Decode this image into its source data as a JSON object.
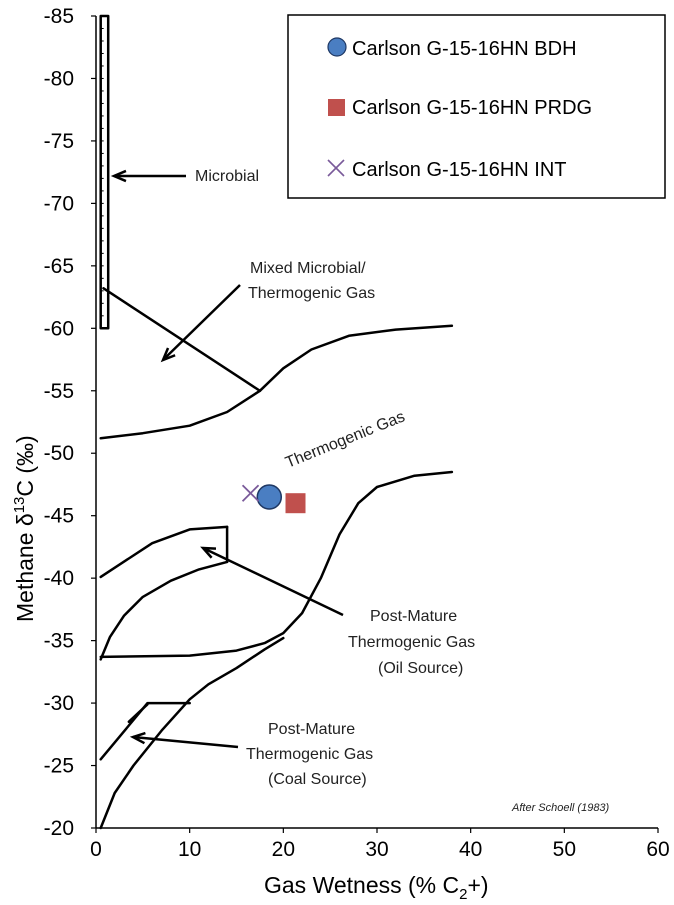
{
  "chart_data": {
    "type": "scatter",
    "xlabel": "Gas Wetness (% C",
    "xlabel_sub": "2",
    "xlabel_end": "+)",
    "ylabel": "Methane  δ",
    "ylabel_sup": "13",
    "ylabel_end": "C (‰)",
    "xlim": [
      0,
      60
    ],
    "ylim": [
      -20,
      -85
    ],
    "x_ticks": [
      0,
      10,
      20,
      30,
      40,
      50,
      60
    ],
    "y_ticks": [
      -20,
      -25,
      -30,
      -35,
      -40,
      -45,
      -50,
      -55,
      -60,
      -65,
      -70,
      -75,
      -80,
      -85
    ],
    "grid": false,
    "legend_position": "top-right",
    "series": [
      {
        "name": "Carlson G-15-16HN BDH",
        "marker": "circle",
        "color": "#4a7ec2",
        "x": [
          18.5
        ],
        "y": [
          -46.5
        ]
      },
      {
        "name": "Carlson G-15-16HN PRDG",
        "marker": "square",
        "color": "#c0504d",
        "x": [
          21.3
        ],
        "y": [
          -46.0
        ]
      },
      {
        "name": "Carlson G-15-16HN INT",
        "marker": "x",
        "color": "#7a5a9a",
        "x": [
          16.5
        ],
        "y": [
          -46.8
        ]
      }
    ],
    "annotations": [
      {
        "text": "Microbial"
      },
      {
        "text": "Mixed Microbial/"
      },
      {
        "text": "Thermogenic Gas"
      },
      {
        "text": "Thermogenic Gas"
      },
      {
        "text": "Post-Mature"
      },
      {
        "text": "Thermogenic Gas"
      },
      {
        "text": "(Oil Source)"
      },
      {
        "text": "Post-Mature"
      },
      {
        "text": "Thermogenic Gas"
      },
      {
        "text": "(Coal Source)"
      }
    ],
    "citation": "After Schoell (1983)",
    "field_boundaries": [
      {
        "region": "microbial",
        "points": [
          [
            0.5,
            -85
          ],
          [
            1.3,
            -85
          ],
          [
            1.3,
            -60
          ],
          [
            0.5,
            -60
          ],
          [
            0.5,
            -85
          ]
        ]
      },
      {
        "region": "mixed-upper",
        "points": [
          [
            0.8,
            -63.2
          ],
          [
            17.5,
            -55
          ]
        ]
      },
      {
        "region": "thermogenic-upper",
        "points": [
          [
            0.5,
            -51.2
          ],
          [
            5,
            -51.6
          ],
          [
            10,
            -52.2
          ],
          [
            14,
            -53.3
          ],
          [
            17.5,
            -55
          ],
          [
            20,
            -56.8
          ],
          [
            23,
            -58.3
          ],
          [
            27,
            -59.4
          ],
          [
            32,
            -59.9
          ],
          [
            38,
            -60.2
          ]
        ]
      },
      {
        "region": "thermogenic-lower",
        "points": [
          [
            0.5,
            -33.7
          ],
          [
            10,
            -33.8
          ],
          [
            15,
            -34.2
          ],
          [
            18,
            -34.8
          ],
          [
            20,
            -35.6
          ],
          [
            22,
            -37.2
          ],
          [
            24,
            -40
          ],
          [
            26,
            -43.5
          ],
          [
            28,
            -46
          ],
          [
            30,
            -47.3
          ],
          [
            34,
            -48.2
          ],
          [
            38,
            -48.5
          ]
        ]
      },
      {
        "region": "oil-source-upper",
        "points": [
          [
            0.5,
            -40.1
          ],
          [
            6,
            -42.8
          ],
          [
            10,
            -43.9
          ],
          [
            14,
            -44.1
          ]
        ]
      },
      {
        "region": "oil-source-right",
        "points": [
          [
            14,
            -44.1
          ],
          [
            14,
            -41.3
          ]
        ]
      },
      {
        "region": "oil-source-lower",
        "points": [
          [
            0.5,
            -33.5
          ],
          [
            1.5,
            -35.3
          ],
          [
            3,
            -37
          ],
          [
            5,
            -38.5
          ],
          [
            8,
            -39.8
          ],
          [
            11,
            -40.7
          ],
          [
            14,
            -41.3
          ]
        ]
      },
      {
        "region": "coal-upper",
        "points": [
          [
            0.5,
            -25.5
          ],
          [
            5.5,
            -30
          ],
          [
            10,
            -30
          ]
        ]
      },
      {
        "region": "coal-lower",
        "points": [
          [
            0.5,
            -20
          ],
          [
            2,
            -22.8
          ],
          [
            4,
            -25
          ],
          [
            7,
            -27.8
          ],
          [
            10,
            -30.3
          ],
          [
            12,
            -31.5
          ],
          [
            15,
            -32.8
          ],
          [
            18,
            -34.3
          ],
          [
            20,
            -35.2
          ]
        ]
      },
      {
        "region": "coal-inner",
        "points": [
          [
            3.5,
            -28.5
          ],
          [
            5.5,
            -29.9
          ]
        ]
      }
    ]
  }
}
